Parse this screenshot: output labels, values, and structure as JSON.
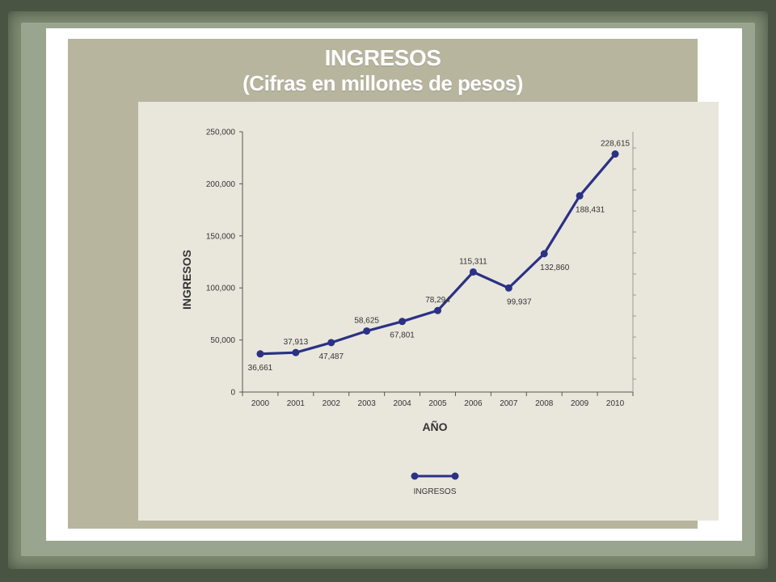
{
  "header": {
    "title": "INGRESOS",
    "subtitle": "(Cifras en millones de pesos)"
  },
  "colors": {
    "line": "#2b3185",
    "panel_back": "#b8b59f",
    "panel_front": "#e9e7dc",
    "frame": "#7d8a71"
  },
  "chart_data": {
    "type": "line",
    "title": "INGRESOS",
    "subtitle": "(Cifras en millones de pesos)",
    "xlabel": "AÑO",
    "ylabel": "INGRESOS",
    "categories": [
      "2000",
      "2001",
      "2002",
      "2003",
      "2004",
      "2005",
      "2006",
      "2007",
      "2008",
      "2009",
      "2010"
    ],
    "ylim": [
      0,
      250000
    ],
    "y_ticks": [
      0,
      50000,
      100000,
      150000,
      200000,
      250000
    ],
    "y_tick_labels": [
      "0",
      "50,000",
      "100,000",
      "150,000",
      "200,000",
      "250,000"
    ],
    "series": [
      {
        "name": "INGRESOS",
        "values": [
          36661,
          37913,
          47487,
          58625,
          67801,
          78294,
          115311,
          99937,
          132860,
          188431,
          228615
        ],
        "labels": [
          "36,661",
          "37,913",
          "47,487",
          "58,625",
          "67,801",
          "78,294",
          "115,311",
          "99,937",
          "132,860",
          "188,431",
          "228,615"
        ]
      }
    ],
    "legend": "bottom-center",
    "grid": false
  }
}
